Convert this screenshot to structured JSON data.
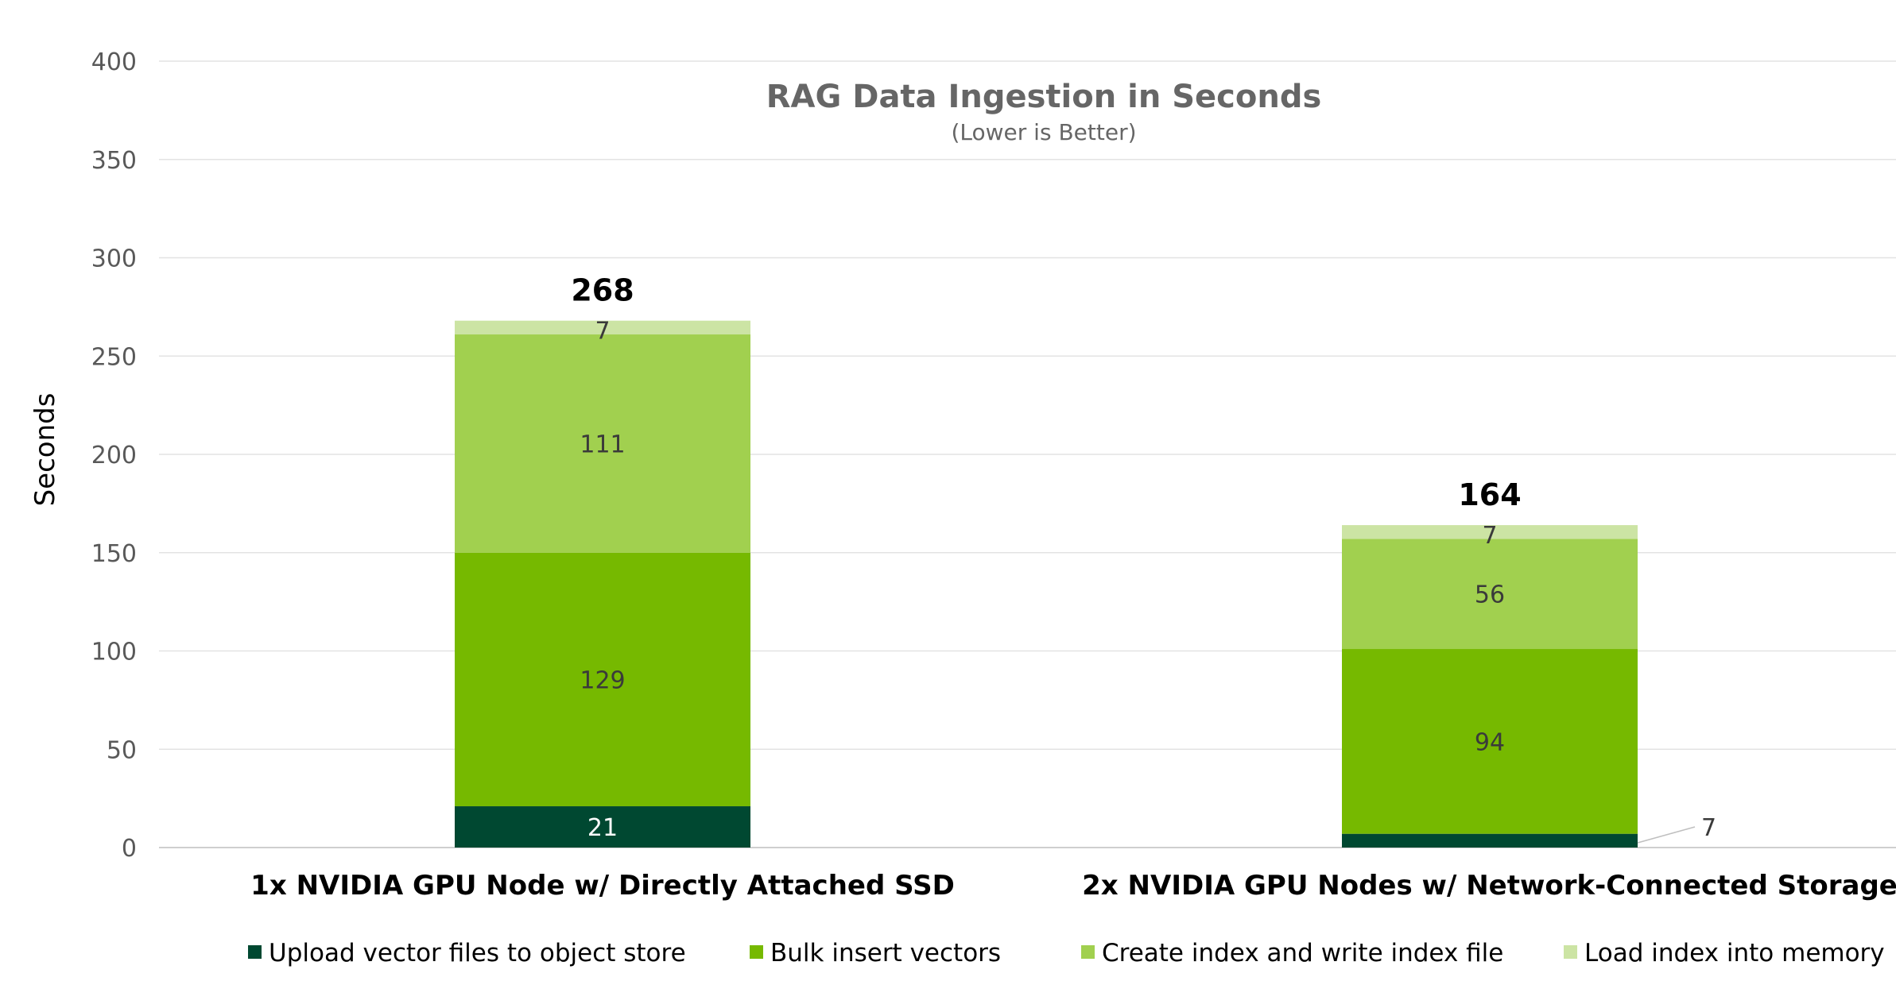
{
  "chart_data": {
    "type": "stacked-bar",
    "title": "RAG Data Ingestion in Seconds",
    "subtitle": "(Lower is Better)",
    "xlabel": "",
    "ylabel": "Seconds",
    "ylim": [
      0,
      400
    ],
    "yticks": [
      0,
      50,
      100,
      150,
      200,
      250,
      300,
      350,
      400
    ],
    "grid": true,
    "legend_position": "bottom",
    "categories": [
      "1x NVIDIA GPU Node w/ Directly Attached SSD",
      "2x NVIDIA GPU Nodes w/ Network-Connected Storage"
    ],
    "series": [
      {
        "name": "Upload vector files to object store",
        "color": "#004831",
        "label_color": "#ffffff",
        "values": [
          21,
          7
        ]
      },
      {
        "name": "Bulk insert vectors",
        "color": "#76b900",
        "label_color": "#3a3a3a",
        "values": [
          129,
          94
        ]
      },
      {
        "name": "Create index and write index file",
        "color": "#a1d04f",
        "label_color": "#3a3a3a",
        "values": [
          111,
          56
        ]
      },
      {
        "name": "Load index into memory",
        "color": "#cce4a4",
        "label_color": "#3a3a3a",
        "values": [
          7,
          7
        ]
      }
    ],
    "totals": [
      268,
      164
    ]
  }
}
